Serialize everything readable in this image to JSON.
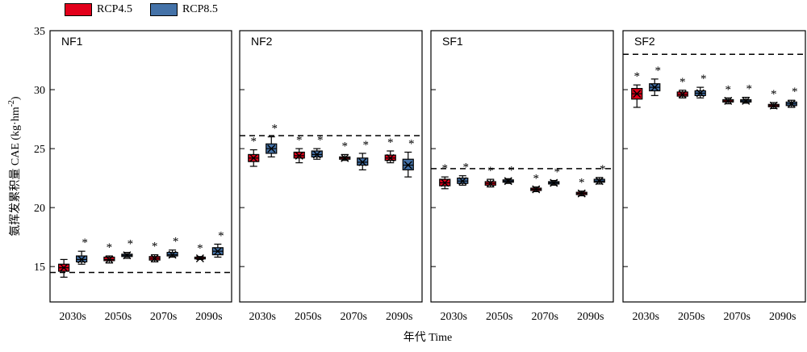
{
  "legend": [
    {
      "label": "RCP4.5",
      "color": "#e3001b"
    },
    {
      "label": "RCP8.5",
      "color": "#4472a8"
    }
  ],
  "chart_data": {
    "type": "box",
    "ylabel": "氨挥发累积量 CAE (kg·hm",
    "ylabel_sup": "-2",
    "ylabel_close": ")",
    "xlabel": "年代 Time",
    "ylim": [
      12,
      35
    ],
    "yticks": [
      15,
      20,
      25,
      30,
      35
    ],
    "categories": [
      "2030s",
      "2050s",
      "2070s",
      "2090s"
    ],
    "significance_marker": "*",
    "panels": [
      {
        "name": "NF1",
        "baseline": 14.5,
        "RCP4.5": [
          {
            "min": 14.1,
            "q1": 14.6,
            "median": 14.9,
            "q3": 15.2,
            "max": 15.6
          },
          {
            "min": 15.3,
            "q1": 15.5,
            "median": 15.6,
            "q3": 15.8,
            "max": 15.9
          },
          {
            "min": 15.4,
            "q1": 15.55,
            "median": 15.7,
            "q3": 15.85,
            "max": 16.0
          },
          {
            "min": 15.6,
            "q1": 15.65,
            "median": 15.7,
            "q3": 15.8,
            "max": 15.85
          }
        ],
        "RCP8.5": [
          {
            "min": 15.2,
            "q1": 15.4,
            "median": 15.6,
            "q3": 15.9,
            "max": 16.3
          },
          {
            "min": 15.7,
            "q1": 15.85,
            "median": 15.95,
            "q3": 16.05,
            "max": 16.2
          },
          {
            "min": 15.8,
            "q1": 15.9,
            "median": 16.0,
            "q3": 16.2,
            "max": 16.4
          },
          {
            "min": 15.8,
            "q1": 16.0,
            "median": 16.3,
            "q3": 16.6,
            "max": 16.9
          }
        ]
      },
      {
        "name": "NF2",
        "baseline": 26.1,
        "RCP4.5": [
          {
            "min": 23.5,
            "q1": 23.9,
            "median": 24.2,
            "q3": 24.5,
            "max": 24.9
          },
          {
            "min": 23.8,
            "q1": 24.2,
            "median": 24.4,
            "q3": 24.7,
            "max": 25.0
          },
          {
            "min": 24.0,
            "q1": 24.1,
            "median": 24.2,
            "q3": 24.3,
            "max": 24.5
          },
          {
            "min": 23.8,
            "q1": 24.0,
            "median": 24.2,
            "q3": 24.45,
            "max": 24.8
          }
        ],
        "RCP8.5": [
          {
            "min": 24.3,
            "q1": 24.6,
            "median": 25.0,
            "q3": 25.4,
            "max": 26.0
          },
          {
            "min": 24.1,
            "q1": 24.3,
            "median": 24.5,
            "q3": 24.8,
            "max": 25.0
          },
          {
            "min": 23.2,
            "q1": 23.6,
            "median": 23.85,
            "q3": 24.2,
            "max": 24.6
          },
          {
            "min": 22.6,
            "q1": 23.2,
            "median": 23.6,
            "q3": 24.1,
            "max": 24.7
          }
        ]
      },
      {
        "name": "SF1",
        "baseline": 23.3,
        "RCP4.5": [
          {
            "min": 21.6,
            "q1": 21.85,
            "median": 22.1,
            "q3": 22.4,
            "max": 22.6
          },
          {
            "min": 21.75,
            "q1": 21.9,
            "median": 22.05,
            "q3": 22.2,
            "max": 22.4
          },
          {
            "min": 21.35,
            "q1": 21.45,
            "median": 21.55,
            "q3": 21.65,
            "max": 21.75
          },
          {
            "min": 21.0,
            "q1": 21.1,
            "median": 21.2,
            "q3": 21.3,
            "max": 21.4
          }
        ],
        "RCP8.5": [
          {
            "min": 21.9,
            "q1": 22.05,
            "median": 22.25,
            "q3": 22.5,
            "max": 22.7
          },
          {
            "min": 22.05,
            "q1": 22.15,
            "median": 22.25,
            "q3": 22.35,
            "max": 22.45
          },
          {
            "min": 21.9,
            "q1": 22.0,
            "median": 22.1,
            "q3": 22.2,
            "max": 22.3
          },
          {
            "min": 22.0,
            "q1": 22.15,
            "median": 22.25,
            "q3": 22.4,
            "max": 22.55
          }
        ]
      },
      {
        "name": "SF2",
        "baseline": 33.0,
        "RCP4.5": [
          {
            "min": 28.5,
            "q1": 29.2,
            "median": 29.65,
            "q3": 30.1,
            "max": 30.4
          },
          {
            "min": 29.3,
            "q1": 29.45,
            "median": 29.6,
            "q3": 29.8,
            "max": 29.95
          },
          {
            "min": 28.8,
            "q1": 28.95,
            "median": 29.05,
            "q3": 29.15,
            "max": 29.3
          },
          {
            "min": 28.4,
            "q1": 28.55,
            "median": 28.65,
            "q3": 28.75,
            "max": 28.9
          }
        ],
        "RCP8.5": [
          {
            "min": 29.5,
            "q1": 29.9,
            "median": 30.2,
            "q3": 30.5,
            "max": 30.9
          },
          {
            "min": 29.3,
            "q1": 29.5,
            "median": 29.7,
            "q3": 29.9,
            "max": 30.2
          },
          {
            "min": 28.85,
            "q1": 28.95,
            "median": 29.05,
            "q3": 29.15,
            "max": 29.35
          },
          {
            "min": 28.5,
            "q1": 28.65,
            "median": 28.8,
            "q3": 28.95,
            "max": 29.1
          }
        ]
      }
    ]
  }
}
